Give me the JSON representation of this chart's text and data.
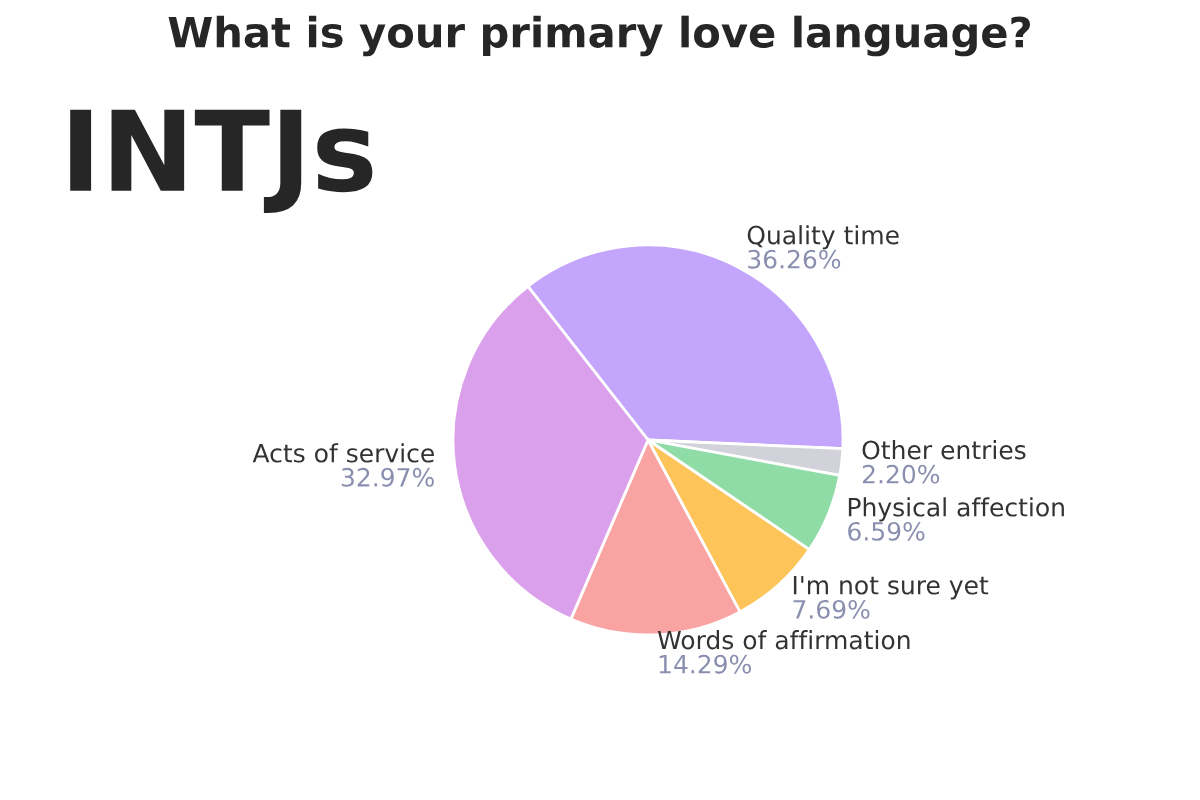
{
  "chart_data": {
    "type": "pie",
    "title": "What is your primary love language?",
    "subtitle": "INTJs",
    "categories": [
      "Quality time",
      "Other entries",
      "Physical affection",
      "I'm not sure yet",
      "Words of affirmation",
      "Acts of service"
    ],
    "values": [
      36.26,
      2.2,
      6.59,
      7.69,
      14.29,
      32.97
    ],
    "value_labels": [
      "36.26%",
      "2.20%",
      "6.59%",
      "7.69%",
      "14.29%",
      "32.97%"
    ],
    "colors": [
      "#c3a6fb",
      "#d2d2da",
      "#8fdca6",
      "#fdc45a",
      "#f9a3a3",
      "#dba0ec"
    ],
    "legend": false
  }
}
